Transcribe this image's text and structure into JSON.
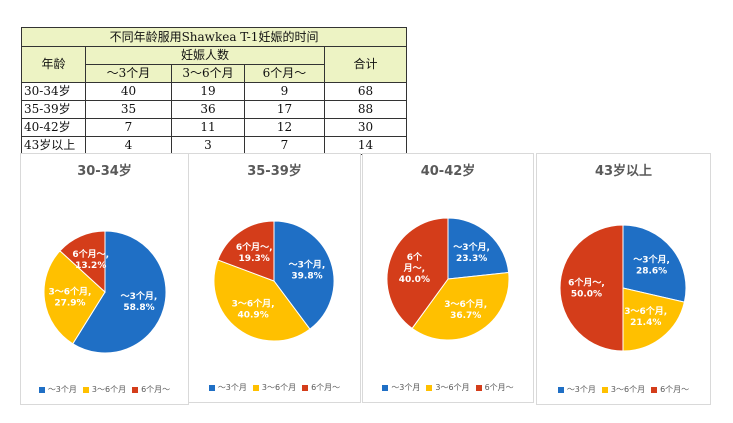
{
  "table": {
    "title": "不同年龄服用Shawkea T-1妊娠的时间",
    "age_header": "年龄",
    "group_header": "妊娠人数",
    "total_header": "合计",
    "columns": [
      "～3个月",
      "3～6个月",
      "6个月～"
    ],
    "rows": [
      {
        "age": "30-34岁",
        "values": [
          "40",
          "19",
          "9"
        ],
        "total": "68"
      },
      {
        "age": "35-39岁",
        "values": [
          "35",
          "36",
          "17"
        ],
        "total": "88"
      },
      {
        "age": "40-42岁",
        "values": [
          "7",
          "11",
          "12"
        ],
        "total": "30"
      },
      {
        "age": "43岁以上",
        "values": [
          "4",
          "3",
          "7"
        ],
        "total": "14"
      }
    ]
  },
  "chart_data": [
    {
      "type": "pie",
      "title": "30-34岁",
      "categories": [
        "～3个月",
        "3～6个月",
        "6个月～"
      ],
      "values": [
        58.8,
        27.9,
        13.2
      ],
      "labels": [
        "～3个月,\n58.8%",
        "3～6个月,\n27.9%",
        "6个月～,\n13.2%"
      ],
      "legend": [
        "～3个月",
        "3～6个月",
        "6个月～"
      ],
      "legend_position": "bottom"
    },
    {
      "type": "pie",
      "title": "35-39岁",
      "categories": [
        "～3个月",
        "3～6个月",
        "6个月～"
      ],
      "values": [
        39.8,
        40.9,
        19.3
      ],
      "labels": [
        "～3个月,\n39.8%",
        "3～6个月,\n40.9%",
        "6个月～,\n19.3%"
      ],
      "legend": [
        "～3个月",
        "3～6个月",
        "6个月～"
      ],
      "legend_position": "bottom"
    },
    {
      "type": "pie",
      "title": "40-42岁",
      "categories": [
        "～3个月",
        "3～6个月",
        "6个月～"
      ],
      "values": [
        23.3,
        36.7,
        40.0
      ],
      "labels": [
        "～3个月,\n23.3%",
        "3～6个月,\n36.7%",
        "6个\n月～,\n40.0%"
      ],
      "legend": [
        "～3个月",
        "3～6个月",
        "6个月～"
      ],
      "legend_position": "bottom"
    },
    {
      "type": "pie",
      "title": "43岁以上",
      "categories": [
        "～3个月",
        "3～6个月",
        "6个月～"
      ],
      "values": [
        28.6,
        21.4,
        50.0
      ],
      "labels": [
        "～3个月,\n28.6%",
        "3～6个月,\n21.4%",
        "6个月～,\n50.0%"
      ],
      "legend": [
        "～3个月",
        "3～6个月",
        "6个月～"
      ],
      "legend_position": "bottom"
    }
  ],
  "colors": {
    "series": [
      "#1f6fc5",
      "#ffc000",
      "#d43d1a"
    ],
    "header_bg": "#edf3c4"
  }
}
